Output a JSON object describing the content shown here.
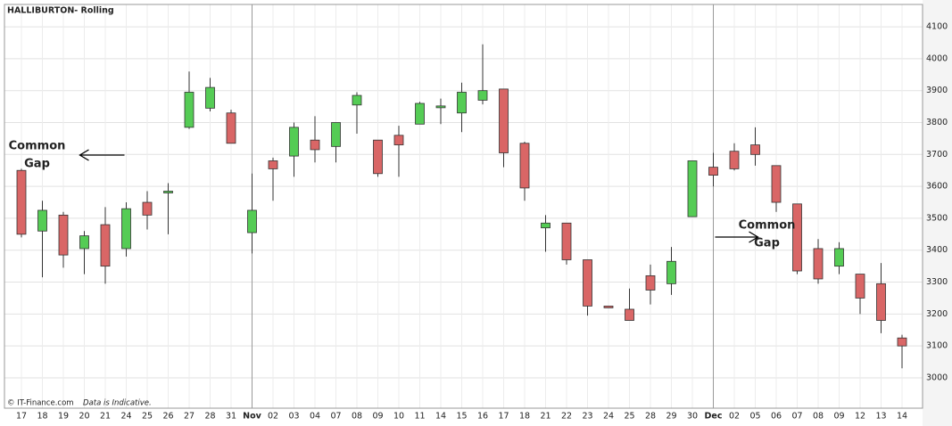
{
  "chart_data": {
    "type": "candlestick",
    "title": "HALLIBURTON- Rolling",
    "footer": [
      "© IT-Finance.com",
      "Data is Indicative."
    ],
    "categories": [
      "17",
      "18",
      "19",
      "20",
      "21",
      "24",
      "25",
      "26",
      "27",
      "28",
      "31",
      "Nov",
      "02",
      "03",
      "04",
      "07",
      "08",
      "09",
      "10",
      "11",
      "14",
      "15",
      "16",
      "17",
      "18",
      "21",
      "22",
      "23",
      "24",
      "25",
      "28",
      "29",
      "30",
      "Dec",
      "02",
      "05",
      "06",
      "07",
      "08",
      "09",
      "12",
      "13",
      "14"
    ],
    "open": [
      3650,
      3460,
      3510,
      3405,
      3480,
      3405,
      3550,
      3580,
      3785,
      3845,
      3830,
      3455,
      3680,
      3695,
      3745,
      3725,
      3855,
      3745,
      3760,
      3795,
      3850,
      3830,
      3870,
      3905,
      3735,
      3470,
      3485,
      3370,
      3225,
      3215,
      3320,
      3295,
      3505,
      3660,
      3710,
      3730,
      3665,
      3545,
      3405,
      3350,
      3325,
      3295,
      3125
    ],
    "high": [
      3655,
      3555,
      3520,
      3460,
      3535,
      3550,
      3585,
      3610,
      3960,
      3940,
      3840,
      3640,
      3690,
      3800,
      3820,
      3800,
      3895,
      3745,
      3790,
      3865,
      3875,
      3925,
      4045,
      3905,
      3740,
      3510,
      3485,
      3370,
      3225,
      3280,
      3355,
      3410,
      3680,
      3705,
      3735,
      3785,
      3665,
      3545,
      3435,
      3425,
      3325,
      3360,
      3135
    ],
    "low": [
      3440,
      3315,
      3345,
      3325,
      3295,
      3380,
      3465,
      3450,
      3780,
      3835,
      3735,
      3390,
      3555,
      3630,
      3675,
      3675,
      3765,
      3630,
      3630,
      3795,
      3795,
      3770,
      3857,
      3660,
      3555,
      3395,
      3355,
      3195,
      3220,
      3180,
      3230,
      3260,
      3505,
      3600,
      3650,
      3665,
      3520,
      3325,
      3295,
      3325,
      3200,
      3140,
      3030
    ],
    "close": [
      3450,
      3525,
      3385,
      3445,
      3350,
      3530,
      3510,
      3585,
      3895,
      3910,
      3735,
      3525,
      3655,
      3785,
      3715,
      3800,
      3885,
      3640,
      3730,
      3860,
      3852,
      3895,
      3900,
      3705,
      3595,
      3485,
      3370,
      3225,
      3220,
      3180,
      3275,
      3365,
      3680,
      3635,
      3655,
      3700,
      3550,
      3335,
      3310,
      3405,
      3250,
      3180,
      3100
    ],
    "up_color": "#55cc55",
    "down_color": "#d96666",
    "ylim": [
      2905,
      4170
    ],
    "yticks": [
      3000,
      3100,
      3200,
      3300,
      3400,
      3500,
      3600,
      3700,
      3800,
      3900,
      4000,
      4100
    ],
    "grid": true,
    "y_axis_side": "right",
    "annotations": [
      {
        "lines": [
          "Common",
          "Gap"
        ],
        "index": 5,
        "arrow": "left"
      },
      {
        "lines": [
          "Common",
          "Gap"
        ],
        "index": 35,
        "arrow": "right"
      }
    ]
  }
}
